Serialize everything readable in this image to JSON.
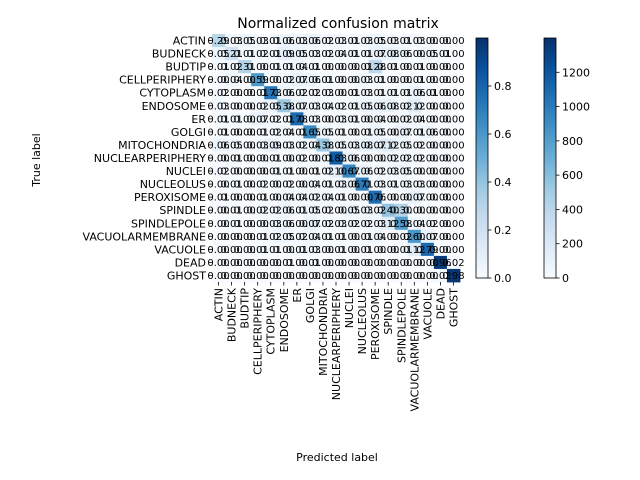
{
  "chart_data": {
    "type": "heatmap",
    "title": "Normalized confusion matrix",
    "xlabel": "Predicted label",
    "ylabel": "True label",
    "labels": [
      "ACTIN",
      "BUDNECK",
      "BUDTIP",
      "CELLPERIPHERY",
      "CYTOPLASM",
      "ENDOSOME",
      "ER",
      "GOLGI",
      "MITOCHONDRIA",
      "NUCLEARPERIPHERY",
      "NUCLEI",
      "NUCLEOLUS",
      "PEROXISOME",
      "SPINDLE",
      "SPINDLEPOLE",
      "VACUOLARMEMBRANE",
      "VACUOLE",
      "DEAD",
      "GHOST"
    ],
    "matrix": [
      [
        0.29,
        0.03,
        0.05,
        0.03,
        0.01,
        0.06,
        0.03,
        0.06,
        0.02,
        0.03,
        0.01,
        0.03,
        0.05,
        0.03,
        0.01,
        0.03,
        0.0,
        0.0,
        0.0
      ],
      [
        0.05,
        0.21,
        0.01,
        0.02,
        0.01,
        0.09,
        0.05,
        0.03,
        0.02,
        0.04,
        0.01,
        0.01,
        0.07,
        0.08,
        0.06,
        0.0,
        0.05,
        0.01,
        0.0
      ],
      [
        0.01,
        0.02,
        0.31,
        0.0,
        0.01,
        0.01,
        0.04,
        0.01,
        0.0,
        0.0,
        0.0,
        0.01,
        0.28,
        0.01,
        0.0,
        0.01,
        0.0,
        0.0,
        0.0
      ],
      [
        0.0,
        0.04,
        0.0,
        0.59,
        0.0,
        0.02,
        0.07,
        0.06,
        0.01,
        0.0,
        0.0,
        0.03,
        0.01,
        0.0,
        0.0,
        0.01,
        0.0,
        0.0,
        0.0
      ],
      [
        0.02,
        0.0,
        0.0,
        0.01,
        0.73,
        0.06,
        0.02,
        0.02,
        0.03,
        0.0,
        0.01,
        0.03,
        0.01,
        0.01,
        0.01,
        0.06,
        0.01,
        0.0,
        0.0
      ],
      [
        0.03,
        0.0,
        0.0,
        0.02,
        0.05,
        0.38,
        0.07,
        0.03,
        0.04,
        0.02,
        0.01,
        0.05,
        0.06,
        0.08,
        0.02,
        0.12,
        0.0,
        0.0,
        0.0
      ],
      [
        0.01,
        0.01,
        0.0,
        0.07,
        0.02,
        0.01,
        0.78,
        0.03,
        0.0,
        0.03,
        0.01,
        0.0,
        0.04,
        0.0,
        0.02,
        0.04,
        0.0,
        0.0,
        0.0
      ],
      [
        0.01,
        0.0,
        0.0,
        0.01,
        0.02,
        0.04,
        0.01,
        0.65,
        0.05,
        0.01,
        0.0,
        0.01,
        0.05,
        0.0,
        0.07,
        0.01,
        0.06,
        0.0,
        0.0
      ],
      [
        0.06,
        0.05,
        0.0,
        0.03,
        0.09,
        0.03,
        0.02,
        0.04,
        0.38,
        0.05,
        0.03,
        0.08,
        0.07,
        0.12,
        0.05,
        0.02,
        0.0,
        0.0,
        0.0
      ],
      [
        0.0,
        0.01,
        0.0,
        0.0,
        0.01,
        0.0,
        0.02,
        0.0,
        0.01,
        0.83,
        0.06,
        0.0,
        0.0,
        0.02,
        0.02,
        0.02,
        0.0,
        0.0,
        0.0
      ],
      [
        0.02,
        0.0,
        0.0,
        0.0,
        0.01,
        0.01,
        0.0,
        0.01,
        0.02,
        0.1,
        0.67,
        0.06,
        0.02,
        0.03,
        0.05,
        0.0,
        0.0,
        0.0,
        0.0
      ],
      [
        0.0,
        0.01,
        0.0,
        0.02,
        0.0,
        0.02,
        0.0,
        0.04,
        0.01,
        0.03,
        0.06,
        0.71,
        0.03,
        0.01,
        0.03,
        0.03,
        0.0,
        0.0,
        0.0
      ],
      [
        0.01,
        0.0,
        0.0,
        0.01,
        0.0,
        0.04,
        0.04,
        0.02,
        0.04,
        0.01,
        0.0,
        0.0,
        0.76,
        0.0,
        0.0,
        0.07,
        0.0,
        0.0,
        0.0
      ],
      [
        0.0,
        0.01,
        0.0,
        0.02,
        0.02,
        0.06,
        0.01,
        0.05,
        0.02,
        0.0,
        0.05,
        0.03,
        0.02,
        0.4,
        0.3,
        0.0,
        0.0,
        0.0,
        0.0
      ],
      [
        0.0,
        0.01,
        0.0,
        0.0,
        0.03,
        0.06,
        0.0,
        0.07,
        0.02,
        0.03,
        0.02,
        0.02,
        0.03,
        0.12,
        0.58,
        0.04,
        0.02,
        0.0,
        0.0
      ],
      [
        0.0,
        0.0,
        0.0,
        0.01,
        0.02,
        0.05,
        0.02,
        0.04,
        0.01,
        0.01,
        0.0,
        0.01,
        0.04,
        0.0,
        0.02,
        0.6,
        0.07,
        0.0,
        0.0
      ],
      [
        0.0,
        0.0,
        0.0,
        0.01,
        0.01,
        0.0,
        0.01,
        0.03,
        0.0,
        0.01,
        0.0,
        0.01,
        0.0,
        0.0,
        0.01,
        0.12,
        0.79,
        0.0,
        0.0
      ],
      [
        0.0,
        0.0,
        0.0,
        0.0,
        0.0,
        0.01,
        0.0,
        0.01,
        0.0,
        0.0,
        0.0,
        0.0,
        0.0,
        0.0,
        0.0,
        0.0,
        0.0,
        0.96,
        0.02
      ],
      [
        0.0,
        0.0,
        0.0,
        0.0,
        0.0,
        0.0,
        0.0,
        0.0,
        0.0,
        0.0,
        0.0,
        0.0,
        0.0,
        0.0,
        0.0,
        0.0,
        0.0,
        0.02,
        0.98
      ]
    ],
    "value_range": [
      0,
      1
    ],
    "colormap": {
      "low": "#f7fbff",
      "mid": "#6baed6",
      "high": "#08306b"
    },
    "colorbars": [
      {
        "range": [
          0,
          1
        ],
        "ticks": [
          "0.0",
          "0.2",
          "0.4",
          "0.6",
          "0.8"
        ],
        "tick_values": [
          0,
          0.2,
          0.4,
          0.6,
          0.8
        ]
      },
      {
        "range": [
          0,
          1400
        ],
        "ticks": [
          "0",
          "200",
          "400",
          "600",
          "800",
          "1000",
          "1200"
        ],
        "tick_values": [
          0,
          200,
          400,
          600,
          800,
          1000,
          1200
        ]
      }
    ],
    "grid": false
  }
}
